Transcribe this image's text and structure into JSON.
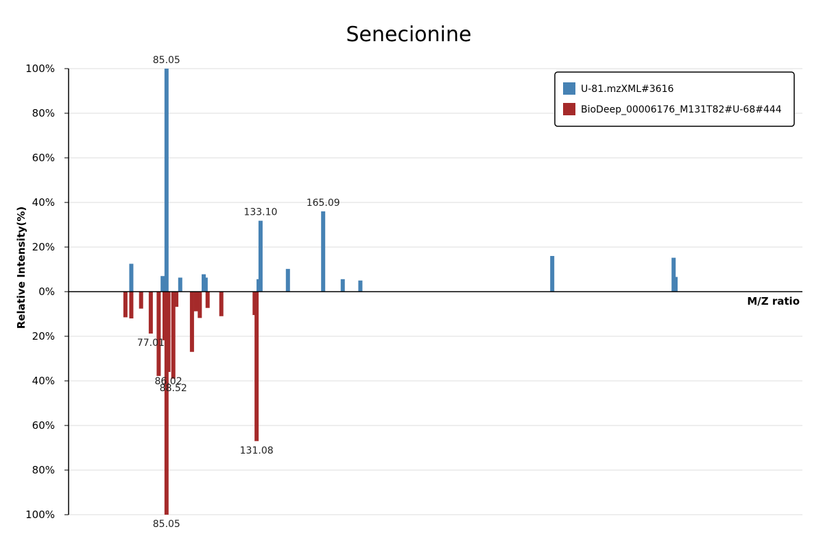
{
  "colors": {
    "sample": "#4682b4",
    "reference": "#a52a2a",
    "axis": "#000000",
    "grid": "#dddddd"
  },
  "chart_data": {
    "type": "bar",
    "title": "Senecionine",
    "xlabel": "M/Z ratio",
    "ylabel": "Relative Intensity(%)",
    "ylim": [
      -100,
      100
    ],
    "y_ticks": [
      {
        "value": 100,
        "label": "100%"
      },
      {
        "value": 80,
        "label": "80%"
      },
      {
        "value": 60,
        "label": "60%"
      },
      {
        "value": 40,
        "label": "40%"
      },
      {
        "value": 20,
        "label": "20%"
      },
      {
        "value": 0,
        "label": "0%"
      },
      {
        "value": -20,
        "label": "20%"
      },
      {
        "value": -40,
        "label": "40%"
      },
      {
        "value": -60,
        "label": "60%"
      },
      {
        "value": -80,
        "label": "80%"
      },
      {
        "value": -100,
        "label": "100%"
      }
    ],
    "grid": true,
    "legend_position": "top-right",
    "series": [
      {
        "name": "U-81.mzXML#3616",
        "direction": "up",
        "color": "#4682b4",
        "peaks": [
          {
            "mz": 67.05,
            "intensity": 12.5
          },
          {
            "mz": 83.07,
            "intensity": 7.0
          },
          {
            "mz": 85.05,
            "intensity": 100,
            "label": "85.05"
          },
          {
            "mz": 92.05,
            "intensity": 6.3
          },
          {
            "mz": 104.05,
            "intensity": 7.8
          },
          {
            "mz": 105.05,
            "intensity": 6.3
          },
          {
            "mz": 132.1,
            "intensity": 5.6
          },
          {
            "mz": 133.1,
            "intensity": 31.8,
            "label": "133.10"
          },
          {
            "mz": 147.08,
            "intensity": 10.2
          },
          {
            "mz": 165.09,
            "intensity": 36.0,
            "label": "165.09"
          },
          {
            "mz": 175.1,
            "intensity": 5.6
          },
          {
            "mz": 184.1,
            "intensity": 5.0
          },
          {
            "mz": 282.15,
            "intensity": 16.0
          },
          {
            "mz": 344.18,
            "intensity": 15.2
          },
          {
            "mz": 345.18,
            "intensity": 6.6
          }
        ]
      },
      {
        "name": "BioDeep_00006176_M131T82#U-68#444",
        "direction": "down",
        "color": "#a52a2a",
        "peaks": [
          {
            "mz": 64.05,
            "intensity": 11.5
          },
          {
            "mz": 67.05,
            "intensity": 12.0
          },
          {
            "mz": 72.05,
            "intensity": 7.6
          },
          {
            "mz": 77.01,
            "intensity": 18.8,
            "label": "77.01"
          },
          {
            "mz": 81.05,
            "intensity": 37.8
          },
          {
            "mz": 84.05,
            "intensity": 21.8
          },
          {
            "mz": 85.05,
            "intensity": 100,
            "label": "85.05"
          },
          {
            "mz": 86.02,
            "intensity": 36.0,
            "label": "86.02"
          },
          {
            "mz": 88.52,
            "intensity": 39.0,
            "label": "88.52"
          },
          {
            "mz": 90.05,
            "intensity": 6.8
          },
          {
            "mz": 98.05,
            "intensity": 27.0
          },
          {
            "mz": 100.05,
            "intensity": 8.8
          },
          {
            "mz": 102.05,
            "intensity": 11.8
          },
          {
            "mz": 106.05,
            "intensity": 7.3
          },
          {
            "mz": 113.05,
            "intensity": 11.0
          },
          {
            "mz": 130.08,
            "intensity": 10.5
          },
          {
            "mz": 131.08,
            "intensity": 67.0,
            "label": "131.08"
          }
        ]
      }
    ]
  }
}
